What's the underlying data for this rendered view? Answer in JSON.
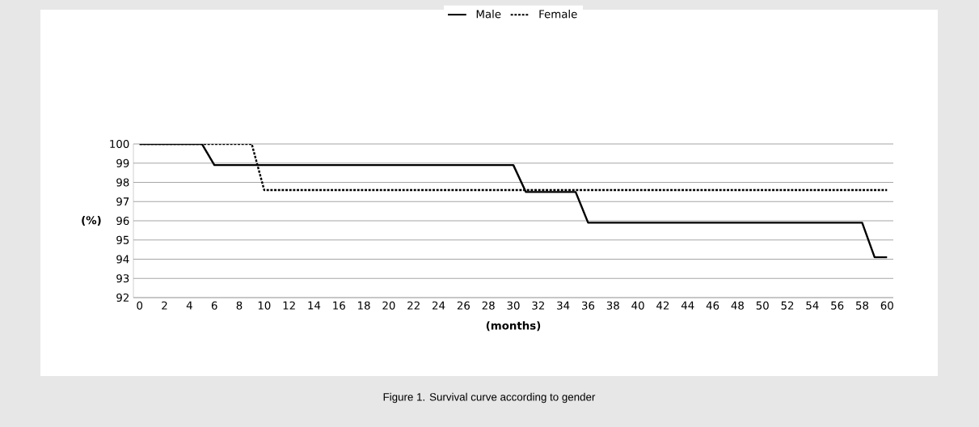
{
  "chart_data": {
    "type": "line",
    "xlabel": "(months)",
    "ylabel": "(%)",
    "annotations": [
      "Figure 1. Survival curve according to gender"
    ],
    "xlim": [
      -0.5,
      60.5
    ],
    "xticks": [
      0,
      2,
      4,
      6,
      8,
      10,
      12,
      14,
      16,
      18,
      20,
      22,
      24,
      26,
      28,
      30,
      32,
      34,
      36,
      38,
      40,
      42,
      44,
      46,
      48,
      50,
      52,
      54,
      56,
      58,
      60
    ],
    "ylim": [
      92,
      100
    ],
    "yticks": [
      92,
      93,
      94,
      95,
      96,
      97,
      98,
      99,
      100
    ],
    "grid": "y",
    "legend": "top",
    "marker": "none",
    "series": [
      {
        "name": "Male",
        "color": "#000000",
        "line_style": "solid",
        "x": [
          0,
          5,
          6,
          30,
          31,
          35,
          36,
          58,
          59,
          60
        ],
        "values": [
          100,
          100,
          98.9,
          98.9,
          97.5,
          97.5,
          95.9,
          95.9,
          94.1,
          94.1
        ]
      },
      {
        "name": "Female",
        "color": "#000000",
        "line_style": "dotted",
        "x": [
          0,
          9,
          10,
          60
        ],
        "values": [
          100,
          100,
          97.6,
          97.6
        ]
      }
    ]
  }
}
